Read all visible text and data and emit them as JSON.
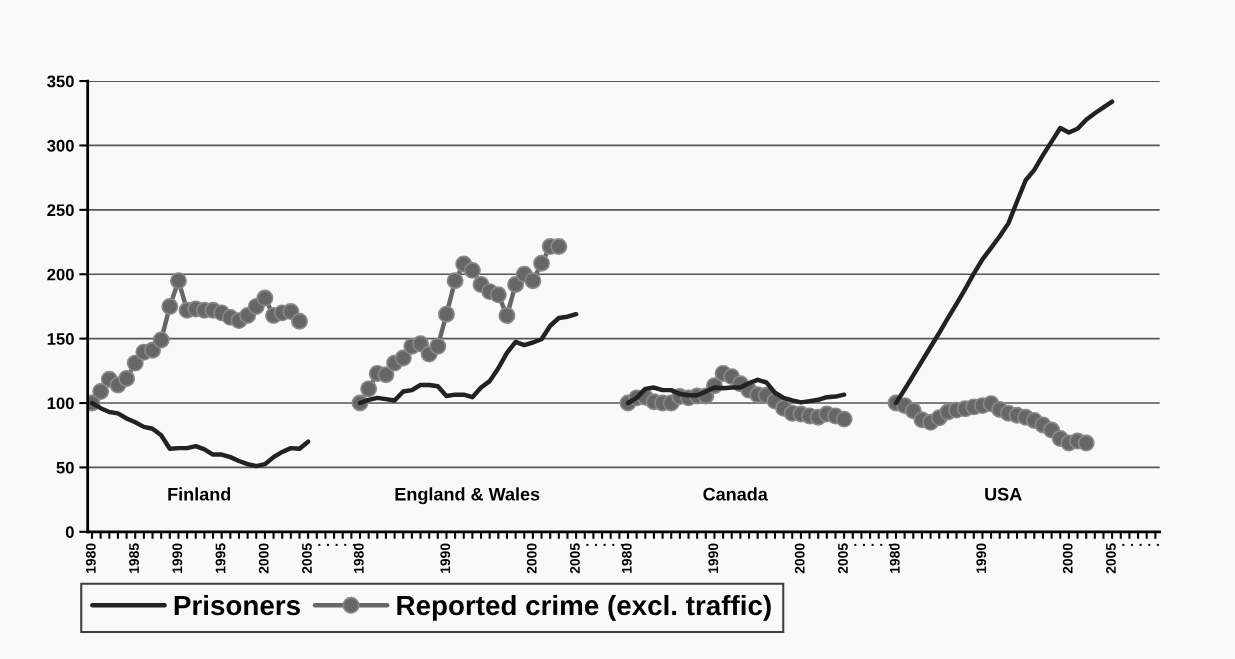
{
  "chart_data": {
    "type": "line",
    "categories": [
      "1980",
      null,
      null,
      null,
      null,
      "1985",
      null,
      null,
      null,
      null,
      "1990",
      null,
      null,
      null,
      null,
      "1995",
      null,
      null,
      null,
      null,
      "2000",
      null,
      null,
      null,
      null,
      "2005",
      ".",
      ".",
      ".",
      ".",
      ".",
      "1980",
      null,
      null,
      null,
      null,
      null,
      null,
      null,
      null,
      null,
      "1990",
      null,
      null,
      null,
      null,
      null,
      null,
      null,
      null,
      null,
      "2000",
      null,
      null,
      null,
      null,
      "2005",
      ".",
      ".",
      ".",
      ".",
      ".",
      "1980",
      null,
      null,
      null,
      null,
      null,
      null,
      null,
      null,
      null,
      "1990",
      null,
      null,
      null,
      null,
      null,
      null,
      null,
      null,
      null,
      "2000",
      null,
      null,
      null,
      null,
      "2005",
      ".",
      ".",
      ".",
      ".",
      ".",
      "1980",
      null,
      null,
      null,
      null,
      null,
      null,
      null,
      null,
      null,
      "1990",
      null,
      null,
      null,
      null,
      null,
      null,
      null,
      null,
      null,
      "2000",
      null,
      null,
      null,
      null,
      "2005",
      ".",
      ".",
      ".",
      ".",
      "."
    ],
    "series": [
      {
        "name": "Prisoners",
        "color": "#222222",
        "marker": "none",
        "values": [
          100,
          96,
          93,
          92,
          88,
          85,
          81.5,
          80,
          75,
          64.5,
          65,
          65,
          66.5,
          64,
          60,
          60,
          58,
          55,
          52.5,
          51,
          52.5,
          58,
          62,
          65,
          64.5,
          70,
          null,
          null,
          null,
          null,
          null,
          100,
          102.5,
          104,
          103,
          102,
          109,
          110,
          114,
          114,
          113,
          105.5,
          106.5,
          106.5,
          104.5,
          112,
          117,
          127,
          139,
          147.5,
          145,
          147,
          149.5,
          160,
          166,
          167,
          169,
          null,
          null,
          null,
          null,
          null,
          100,
          104,
          111,
          112,
          110,
          110,
          107,
          106,
          106,
          109,
          112,
          111.5,
          112,
          112,
          115.5,
          118,
          116,
          108,
          104,
          102,
          100.5,
          101.5,
          102.5,
          104.5,
          105,
          106.5,
          null,
          null,
          null,
          null,
          null,
          100,
          110.5,
          121.5,
          132.5,
          143.5,
          154.5,
          166,
          177,
          188.5,
          200.5,
          211.5,
          220.5,
          229.5,
          239.5,
          256.5,
          273,
          281,
          292.5,
          303,
          313.5,
          310,
          313,
          320,
          325,
          329.5,
          334,
          null,
          null,
          null,
          null,
          null
        ]
      },
      {
        "name": "Reported crime (excl. traffic)",
        "color": "#666666",
        "marker": "circle",
        "values": [
          100,
          109,
          118.5,
          114,
          119,
          131,
          139.5,
          141,
          149,
          175,
          195,
          172,
          173,
          172,
          172,
          170,
          166.5,
          164,
          168,
          175,
          181.5,
          168,
          170,
          171,
          163.5,
          null,
          null,
          null,
          null,
          null,
          null,
          100,
          111,
          123,
          122,
          131,
          135,
          144,
          146,
          138,
          144,
          169,
          195,
          208,
          203,
          192,
          186.5,
          184,
          168,
          192,
          200,
          195,
          208.5,
          221.5,
          221.5,
          null,
          null,
          null,
          null,
          null,
          null,
          null,
          100,
          104,
          104.5,
          101,
          100,
          100,
          105,
          104,
          105.5,
          105.5,
          113.5,
          123,
          120.5,
          115,
          110,
          106.5,
          106,
          101.5,
          96,
          92,
          91.5,
          90,
          89,
          91.5,
          90,
          87.5,
          null,
          null,
          null,
          null,
          null,
          100,
          98,
          94,
          87,
          85,
          88.5,
          93,
          94.5,
          95.5,
          97,
          98,
          99.5,
          95,
          92,
          90.5,
          89,
          86.5,
          83,
          79,
          72.5,
          69,
          70.5,
          69,
          null,
          null,
          null,
          null,
          null,
          null,
          null,
          null
        ]
      }
    ],
    "ylim": [
      0,
      350
    ],
    "yticks": [
      0,
      50,
      100,
      150,
      200,
      250,
      300,
      350
    ],
    "grid": "y",
    "legend": "bottom",
    "annotations": [
      "Finland",
      "England & Wales",
      "Canada",
      "USA"
    ]
  }
}
